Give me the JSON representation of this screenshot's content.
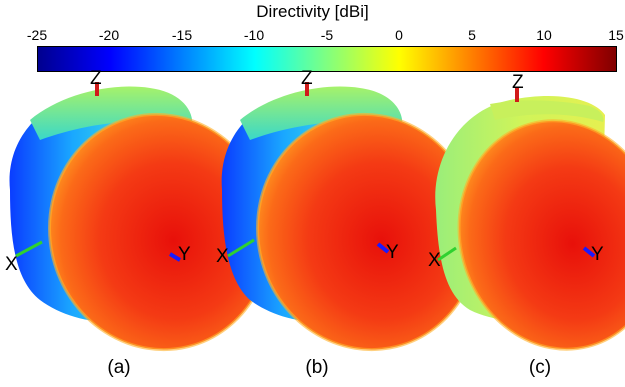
{
  "colorbar": {
    "title": "Directivity [dBi]",
    "ticks": [
      "-25",
      "-20",
      "-15",
      "-10",
      "-5",
      "0",
      "5",
      "10",
      "15"
    ],
    "range": [
      -25,
      15
    ],
    "colormap": "jet"
  },
  "panels": [
    {
      "label": "(a)",
      "axes": {
        "x": "X",
        "y": "Y",
        "z": "Z"
      }
    },
    {
      "label": "(b)",
      "axes": {
        "x": "X",
        "y": "Y",
        "z": "Z"
      }
    },
    {
      "label": "(c)",
      "axes": {
        "x": "X",
        "y": "Y",
        "z": "Z"
      }
    }
  ],
  "axis_colors": {
    "x": "#2fd12f",
    "y": "#1a1aff",
    "z": "#d11a1a"
  }
}
